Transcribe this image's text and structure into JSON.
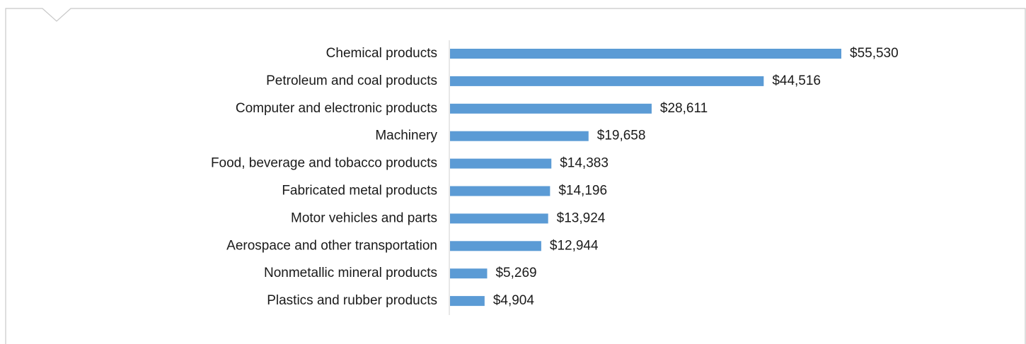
{
  "chart_data": {
    "type": "bar",
    "orientation": "horizontal",
    "title": "",
    "xlabel": "",
    "ylabel": "",
    "grid": false,
    "legend": "none",
    "bar_color": "#5b9bd5",
    "categories": [
      "Chemical products",
      "Petroleum and coal products",
      "Computer and electronic products",
      "Machinery",
      "Food, beverage and tobacco products",
      "Fabricated metal products",
      "Motor vehicles and parts",
      "Aerospace and other transportation",
      "Nonmetallic mineral products",
      "Plastics and rubber products"
    ],
    "values": [
      55530,
      44516,
      28611,
      19658,
      14383,
      14196,
      13924,
      12944,
      5269,
      4904
    ],
    "value_labels": [
      "$55,530",
      "$44,516",
      "$28,611",
      "$19,658",
      "$14,383",
      "$14,196",
      "$13,924",
      "$12,944",
      "$5,269",
      "$4,904"
    ],
    "xlim": [
      0,
      55530
    ]
  }
}
